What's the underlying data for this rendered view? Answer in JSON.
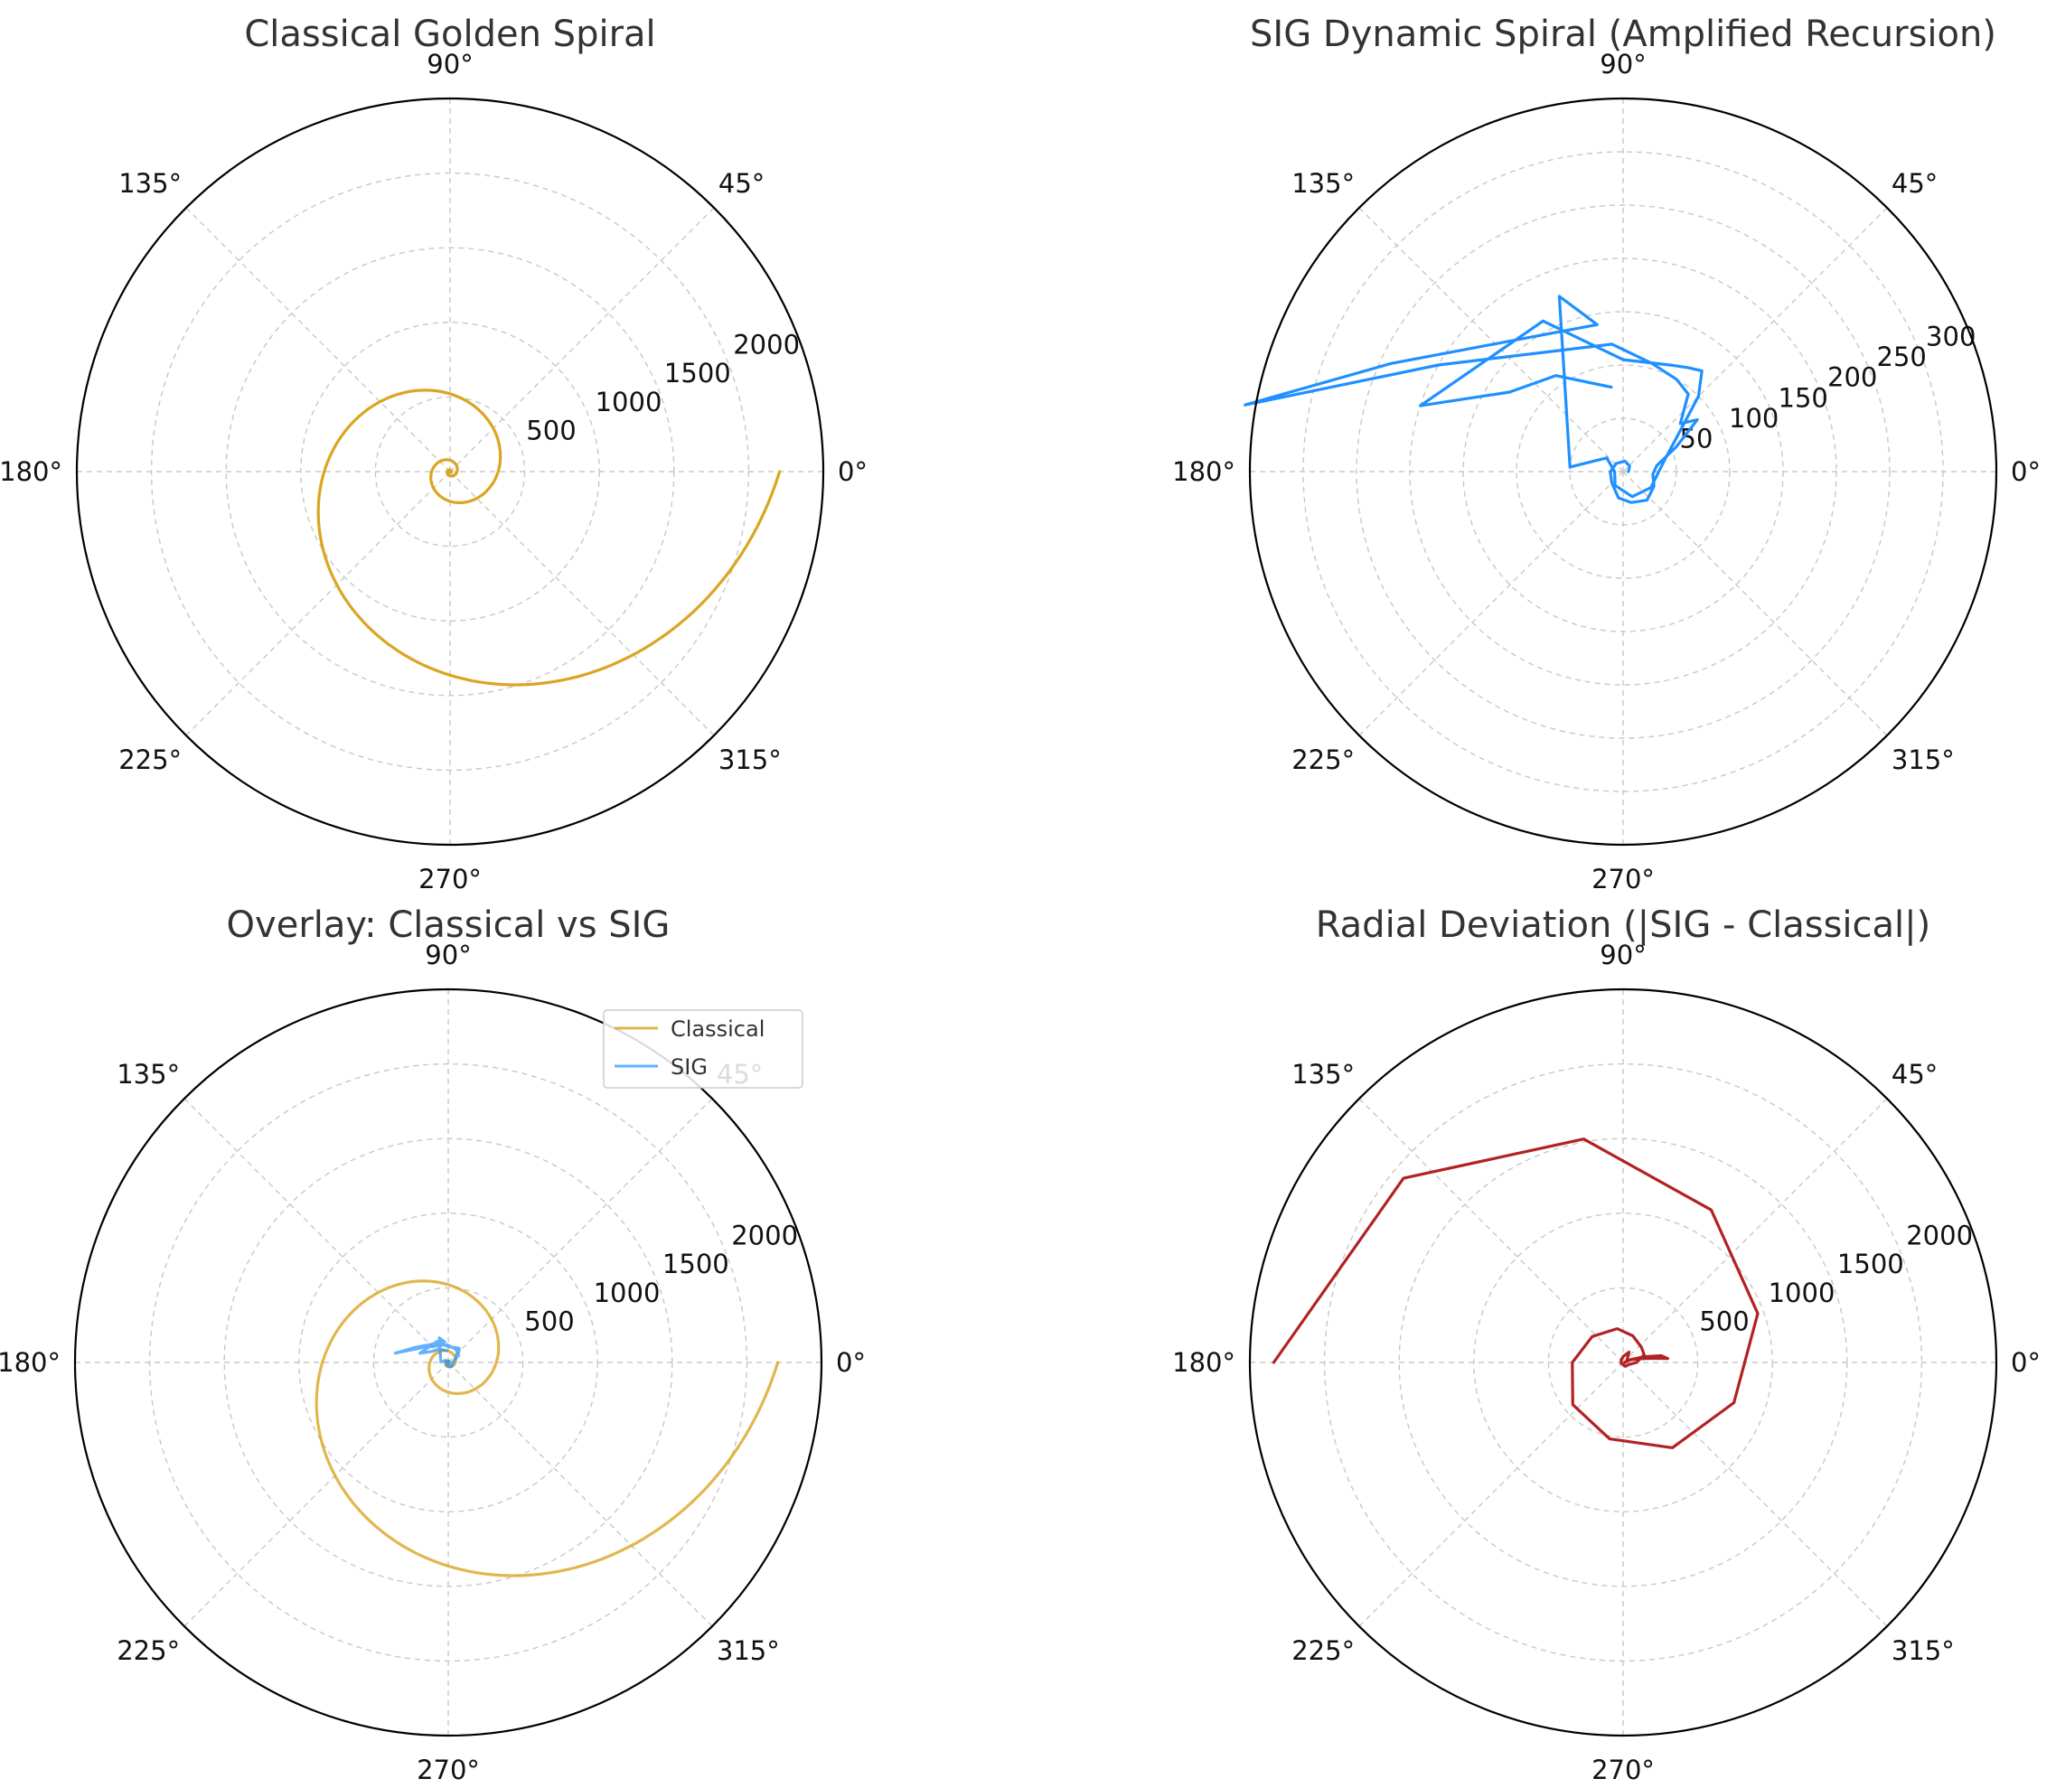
{
  "chart_data": [
    {
      "type": "line",
      "projection": "polar",
      "title": "Classical Golden Spiral",
      "theta_ticks": [
        "0°",
        "45°",
        "90°",
        "135°",
        "180°",
        "225°",
        "270°",
        "315°"
      ],
      "r_ticks": [
        500,
        1000,
        1500,
        2000
      ],
      "rlim": [
        0,
        2500
      ],
      "grid": true,
      "series": [
        {
          "color": "#DAA520",
          "spiral": {
            "a": 1,
            "growth": 0.306349,
            "theta_deg_range": [
              0,
              1440
            ]
          }
        }
      ]
    },
    {
      "type": "line",
      "projection": "polar",
      "title": "SIG Dynamic Spiral (Amplified Recursion)",
      "theta_ticks": [
        "0°",
        "45°",
        "90°",
        "135°",
        "180°",
        "225°",
        "270°",
        "315°"
      ],
      "r_ticks": [
        50,
        100,
        150,
        200,
        250,
        300
      ],
      "rlim": [
        0,
        350
      ],
      "grid": true,
      "series": [
        {
          "color": "#1E90FF",
          "points": [
            [
              0,
              5
            ],
            [
              40,
              8
            ],
            [
              80,
              10
            ],
            [
              130,
              10
            ],
            [
              180,
              12
            ],
            [
              225,
              15
            ],
            [
              260,
              25
            ],
            [
              285,
              30
            ],
            [
              310,
              35
            ],
            [
              335,
              32
            ],
            [
              355,
              28
            ],
            [
              10,
              32
            ],
            [
              25,
              55
            ],
            [
              35,
              85
            ],
            [
              40,
              70
            ],
            [
              50,
              95
            ],
            [
              60,
              100
            ],
            [
              75,
              105
            ],
            [
              95,
              120
            ],
            [
              150,
              200
            ],
            [
              170,
              360
            ],
            [
              155,
              240
            ],
            [
              100,
              140
            ],
            [
              105,
              155
            ],
            [
              110,
              175
            ],
            [
              175,
              50
            ],
            [
              140,
              20
            ],
            [
              180,
              8
            ],
            [
              240,
              15
            ],
            [
              290,
              25
            ],
            [
              330,
              30
            ],
            [
              15,
              40
            ],
            [
              45,
              100
            ],
            [
              52,
              120
            ],
            [
              58,
              115
            ],
            [
              65,
              110
            ],
            [
              90,
              105
            ],
            [
              118,
              160
            ],
            [
              162,
              200
            ],
            [
              145,
              130
            ],
            [
              125,
              110
            ],
            [
              98,
              80
            ]
          ]
        }
      ]
    },
    {
      "type": "line",
      "projection": "polar",
      "title": "Overlay: Classical vs SIG",
      "theta_ticks": [
        "0°",
        "45°",
        "90°",
        "135°",
        "180°",
        "225°",
        "270°",
        "315°"
      ],
      "r_ticks": [
        500,
        1000,
        1500,
        2000
      ],
      "rlim": [
        0,
        2500
      ],
      "grid": true,
      "legend": {
        "placement": "upper-right",
        "entries": [
          "Classical",
          "SIG"
        ]
      },
      "series": [
        {
          "name": "Classical",
          "color": "#DAA520",
          "opacity": 0.8,
          "spiral": {
            "a": 1,
            "growth": 0.306349,
            "theta_deg_range": [
              0,
              1440
            ]
          }
        },
        {
          "name": "SIG",
          "color": "#1E90FF",
          "opacity": 0.7,
          "points": [
            [
              0,
              5
            ],
            [
              40,
              8
            ],
            [
              80,
              10
            ],
            [
              130,
              10
            ],
            [
              180,
              12
            ],
            [
              225,
              15
            ],
            [
              260,
              25
            ],
            [
              285,
              30
            ],
            [
              310,
              35
            ],
            [
              335,
              32
            ],
            [
              355,
              28
            ],
            [
              10,
              32
            ],
            [
              25,
              55
            ],
            [
              35,
              85
            ],
            [
              40,
              70
            ],
            [
              50,
              95
            ],
            [
              60,
              100
            ],
            [
              75,
              105
            ],
            [
              95,
              120
            ],
            [
              150,
              200
            ],
            [
              170,
              360
            ],
            [
              155,
              240
            ],
            [
              100,
              140
            ],
            [
              105,
              155
            ],
            [
              110,
              175
            ],
            [
              175,
              50
            ],
            [
              140,
              20
            ],
            [
              180,
              8
            ],
            [
              240,
              15
            ],
            [
              290,
              25
            ],
            [
              330,
              30
            ],
            [
              15,
              40
            ],
            [
              45,
              100
            ],
            [
              52,
              120
            ],
            [
              58,
              115
            ],
            [
              65,
              110
            ],
            [
              90,
              105
            ],
            [
              118,
              160
            ],
            [
              162,
              200
            ],
            [
              145,
              130
            ],
            [
              125,
              110
            ],
            [
              98,
              80
            ]
          ]
        }
      ]
    },
    {
      "type": "line",
      "projection": "polar",
      "title": "Radial Deviation (|SIG - Classical|)",
      "theta_ticks": [
        "0°",
        "45°",
        "90°",
        "135°",
        "180°",
        "225°",
        "270°",
        "315°"
      ],
      "r_ticks": [
        500,
        1000,
        1500,
        2000
      ],
      "rlim": [
        0,
        2500
      ],
      "grid": true,
      "series": [
        {
          "color": "#B22222",
          "points": [
            [
              0,
              10
            ],
            [
              20,
              60
            ],
            [
              15,
              150
            ],
            [
              10,
              260
            ],
            [
              5,
              300
            ],
            [
              8,
              200
            ],
            [
              12,
              120
            ],
            [
              18,
              60
            ],
            [
              30,
              30
            ],
            [
              60,
              80
            ],
            [
              90,
              40
            ],
            [
              130,
              20
            ],
            [
              200,
              15
            ],
            [
              300,
              30
            ],
            [
              340,
              40
            ],
            [
              360,
              90
            ],
            [
              380,
              150
            ],
            [
              400,
              160
            ],
            [
              430,
              190
            ],
            [
              460,
              230
            ],
            [
              500,
              270
            ],
            [
              540,
              340
            ],
            [
              580,
              440
            ],
            [
              620,
              520
            ],
            [
              660,
              660
            ],
            [
              700,
              790
            ],
            [
              740,
              960
            ],
            [
              780,
              1180
            ],
            [
              820,
              1520
            ],
            [
              860,
              1920
            ],
            [
              900,
              2340
            ]
          ]
        }
      ]
    }
  ]
}
